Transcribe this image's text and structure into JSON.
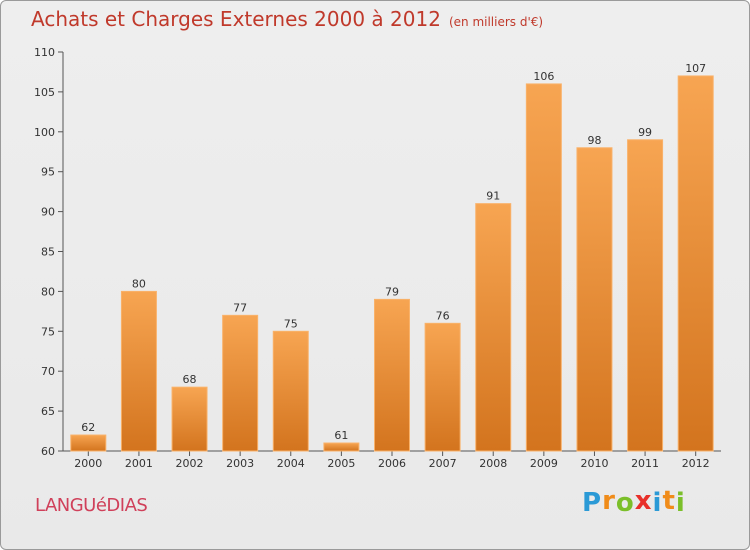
{
  "chart_data": {
    "type": "bar",
    "title": "Achats et Charges Externes 2000 à 2012",
    "subtitle": "(en milliers d'€)",
    "categories": [
      "2000",
      "2001",
      "2002",
      "2003",
      "2004",
      "2005",
      "2006",
      "2007",
      "2008",
      "2009",
      "2010",
      "2011",
      "2012"
    ],
    "values": [
      62,
      80,
      68,
      77,
      75,
      61,
      79,
      76,
      91,
      106,
      98,
      99,
      107
    ],
    "ylim": [
      60,
      110
    ],
    "yticks": [
      60,
      65,
      70,
      75,
      80,
      85,
      90,
      95,
      100,
      105,
      110
    ],
    "xlabel": "",
    "ylabel": "",
    "grid": false,
    "colors": {
      "bar_light": "#f7a552",
      "bar_dark": "#d3741e",
      "bar_top": "#f9b26a"
    }
  },
  "commune": "LANGUéDIAS",
  "logo": {
    "letters": [
      "P",
      "r",
      "o",
      "x",
      "i",
      "t",
      "i"
    ],
    "colors": [
      "#2b9ad6",
      "#f08c1a",
      "#7bbf2a",
      "#e8302a",
      "#2b9ad6",
      "#f08c1a",
      "#7bbf2a"
    ]
  }
}
